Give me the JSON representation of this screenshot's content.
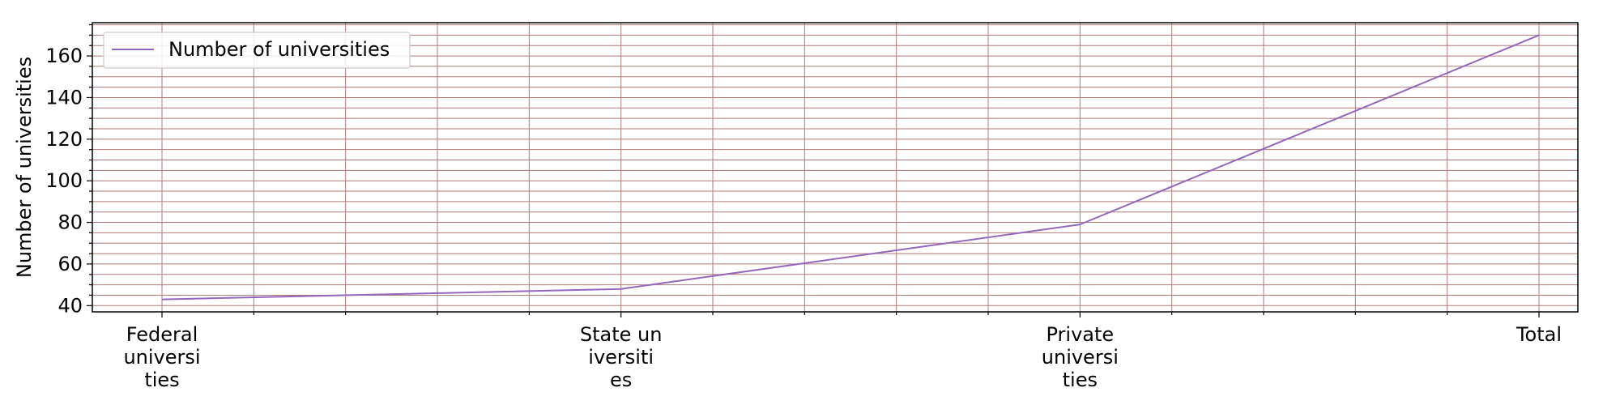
{
  "chart_data": {
    "type": "line",
    "categories": [
      [
        "Federal",
        "universi",
        "ties"
      ],
      [
        "State un",
        "iversiti",
        "es"
      ],
      [
        "Private",
        "universi",
        "ties"
      ],
      [
        "Total"
      ]
    ],
    "series": [
      {
        "name": "Number of universities",
        "values": [
          43,
          48,
          79,
          170
        ]
      }
    ],
    "xlabel": "",
    "ylabel": "Number of universities",
    "ylim": [
      37,
      176
    ],
    "yticks": [
      40,
      60,
      80,
      100,
      120,
      140,
      160
    ],
    "ytick_labels": [
      "40",
      "60",
      "80",
      "100",
      "120",
      "140",
      "160"
    ],
    "y_minor_step": 5,
    "x_minor_divisions": 5,
    "grid": true,
    "legend_position": "upper-left",
    "colors": {
      "line": "#9467bd",
      "grid": "#b07a7a",
      "axis": "#000000",
      "legend_border": "#cccccc"
    }
  }
}
